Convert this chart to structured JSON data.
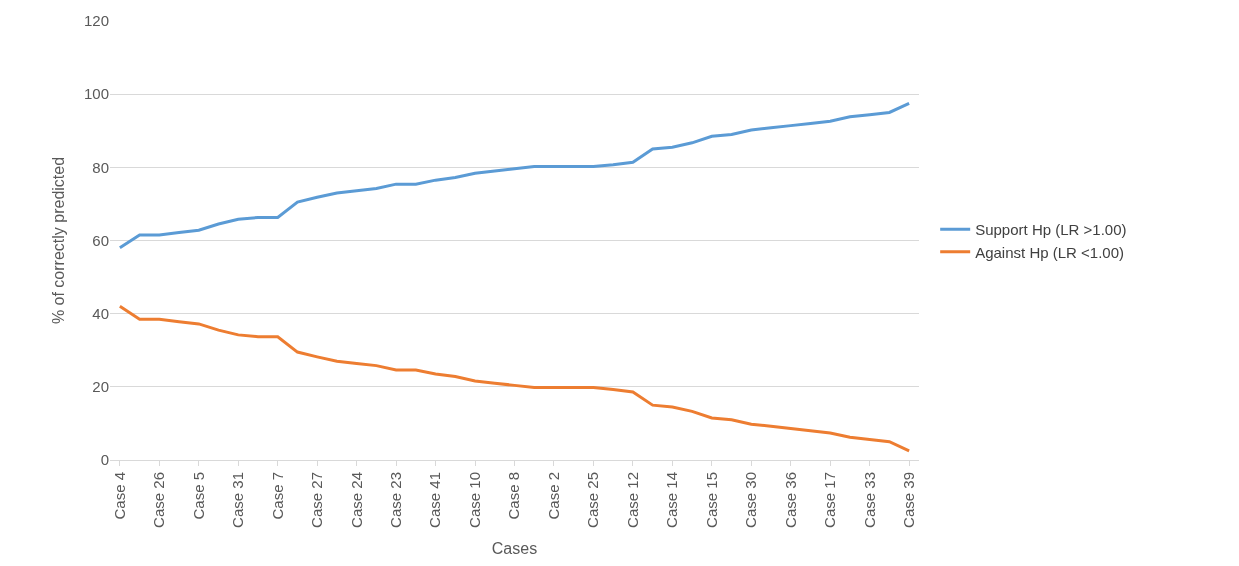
{
  "chart_data": {
    "type": "line",
    "xlabel": "Cases",
    "ylabel": "% of correctly predicted",
    "categories": [
      "Case 4",
      null,
      "Case 26",
      null,
      "Case 5",
      null,
      "Case 31",
      null,
      "Case 7",
      null,
      "Case 27",
      null,
      "Case 24",
      null,
      "Case 23",
      null,
      "Case 41",
      null,
      "Case 10",
      null,
      "Case 8",
      null,
      "Case 2",
      null,
      "Case 25",
      null,
      "Case 12",
      null,
      "Case 14",
      null,
      "Case 15",
      null,
      "Case 30",
      null,
      "Case 36",
      null,
      "Case 17",
      null,
      "Case 33",
      null,
      "Case 39"
    ],
    "series": [
      {
        "name": "Support Hp (LR >1.00)",
        "color": "#5b9bd5",
        "values": [
          58,
          61.5,
          61.5,
          62.2,
          62.8,
          64.5,
          65.8,
          66.3,
          66.3,
          70.5,
          71.8,
          73,
          73.6,
          74.2,
          75.4,
          75.4,
          76.5,
          77.2,
          78.4,
          79,
          79.6,
          80.2,
          80.2,
          80.2,
          80.2,
          80.7,
          81.4,
          85,
          85.5,
          86.7,
          88.5,
          89,
          90.2,
          90.8,
          91.4,
          92,
          92.6,
          93.8,
          94.4,
          95,
          97.5
        ]
      },
      {
        "name": "Against Hp (LR <1.00)",
        "color": "#ed7d31",
        "values": [
          42,
          38.5,
          38.5,
          37.8,
          37.2,
          35.5,
          34.2,
          33.7,
          33.7,
          29.5,
          28.2,
          27,
          26.4,
          25.8,
          24.6,
          24.6,
          23.5,
          22.8,
          21.6,
          21,
          20.4,
          19.8,
          19.8,
          19.8,
          19.8,
          19.3,
          18.6,
          15,
          14.5,
          13.3,
          11.5,
          11,
          9.8,
          9.2,
          8.6,
          8,
          7.4,
          6.2,
          5.6,
          5,
          2.5
        ]
      }
    ],
    "ylim": [
      0,
      120
    ],
    "yticks": [
      0,
      20,
      40,
      60,
      80,
      100,
      120
    ],
    "grid": "y",
    "legend": "right",
    "marker": "none",
    "line_style": "solid"
  }
}
